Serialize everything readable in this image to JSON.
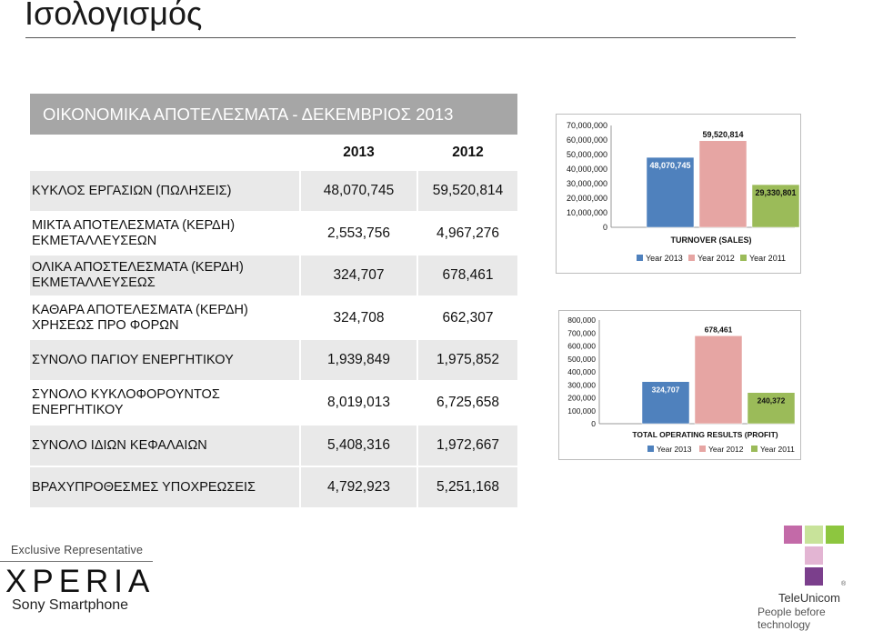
{
  "page": {
    "title": "Ισολογισμός"
  },
  "table": {
    "header": "ΟΙΚΟΝΟΜΙΚΑ ΑΠΟΤΕΛΕΣΜΑΤΑ - ΔΕΚΕΜΒΡΙΟΣ 2013",
    "years": [
      "2013",
      "2012"
    ],
    "rows": [
      {
        "label": "ΚΥΚΛΟΣ ΕΡΓΑΣΙΩΝ (ΠΩΛΗΣΕΙΣ)",
        "v2013": "48,070,745",
        "v2012": "59,520,814"
      },
      {
        "label": "ΜΙΚΤΑ ΑΠΟΤΕΛΕΣΜΑΤΑ (ΚΕΡΔΗ) ΕΚΜΕΤΑΛΛΕΥΣΕΩΝ",
        "v2013": "2,553,756",
        "v2012": "4,967,276"
      },
      {
        "label": "ΟΛΙΚΑ ΑΠΟΣΤΕΛΕΣΜΑΤΑ (ΚΕΡΔΗ) ΕΚΜΕΤΑΛΛΕΥΣΕΩΣ",
        "v2013": "324,707",
        "v2012": "678,461"
      },
      {
        "label": "ΚΑΘΑΡΑ ΑΠΟΤΕΛΕΣΜΑΤΑ (ΚΕΡΔΗ) ΧΡΗΣΕΩΣ ΠΡΟ ΦΟΡΩΝ",
        "v2013": "324,708",
        "v2012": "662,307"
      },
      {
        "label": "ΣΥΝΟΛΟ ΠΑΓΙΟΥ ΕΝΕΡΓΗΤΙΚΟΥ",
        "v2013": "1,939,849",
        "v2012": "1,975,852"
      },
      {
        "label": "ΣΥΝΟΛΟ ΚΥΚΛΟΦΟΡΟΥΝΤΟΣ ΕΝΕΡΓΗΤΙΚΟΥ",
        "v2013": "8,019,013",
        "v2012": "6,725,658"
      },
      {
        "label": "ΣΥΝΟΛΟ ΙΔΙΩΝ ΚΕΦΑΛΑΙΩΝ",
        "v2013": "5,408,316",
        "v2012": "1,972,667"
      },
      {
        "label": "ΒΡΑΧΥΠΡΟΘΕΣΜΕΣ ΥΠΟΧΡΕΩΣΕΙΣ",
        "v2013": "4,792,923",
        "v2012": "5,251,168"
      }
    ]
  },
  "colors": {
    "year2013": "#4f81bd",
    "year2012": "#e6a5a3",
    "year2011": "#9bbb59",
    "table_header_bg": "#a6a6a6",
    "tu_pink": "#c36aa8",
    "tu_green": "#8dc63f",
    "tu_purple": "#7b3f8c"
  },
  "chart_data": [
    {
      "type": "bar",
      "title": "TURNOVER (SALES)",
      "series": [
        {
          "name": "Year 2013",
          "values": [
            48070745
          ],
          "label": "48,070,745"
        },
        {
          "name": "Year 2012",
          "values": [
            59520814
          ],
          "label": "59,520,814"
        },
        {
          "name": "Year 2011",
          "values": [
            29330801
          ],
          "label": "29,330,801"
        }
      ],
      "yticks": [
        "0",
        "10,000,000",
        "20,000,000",
        "30,000,000",
        "40,000,000",
        "50,000,000",
        "60,000,000",
        "70,000,000"
      ],
      "ylim": [
        0,
        70000000
      ],
      "legend": "bottom",
      "grid": false
    },
    {
      "type": "bar",
      "title": "TOTAL OPERATING RESULTS (PROFIT)",
      "series": [
        {
          "name": "Year 2013",
          "values": [
            324707
          ],
          "label": "324,707"
        },
        {
          "name": "Year 2012",
          "values": [
            678461
          ],
          "label": "678,461"
        },
        {
          "name": "Year 2011",
          "values": [
            240372
          ],
          "label": "240,372"
        }
      ],
      "yticks": [
        "0",
        "100,000",
        "200,000",
        "300,000",
        "400,000",
        "500,000",
        "600,000",
        "700,000",
        "800,000"
      ],
      "ylim": [
        0,
        800000
      ],
      "legend": "bottom",
      "grid": false
    }
  ],
  "brands": {
    "exclusive": "Exclusive Representative",
    "xperia": "XPERIA",
    "sony": "Sony Smartphone",
    "teleunicom": "TeleUnicom",
    "slogan": "People before technology",
    "registered": "®"
  }
}
